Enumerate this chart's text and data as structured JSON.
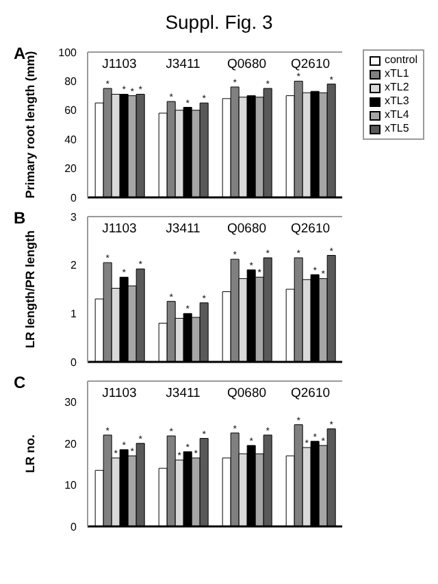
{
  "chart_data": [
    {
      "type": "bar",
      "title": "Suppl. Fig. 3",
      "annotations": [
        "A"
      ],
      "ylabel": "Primary root length (mm)",
      "categories": [
        "J1103",
        "J3411",
        "Q0680",
        "Q2610"
      ],
      "ylim": [
        0,
        100
      ],
      "yticks": [
        0,
        20,
        40,
        60,
        80,
        100
      ],
      "legend": "right",
      "series": [
        {
          "name": "control",
          "color": "#ffffff",
          "values": [
            65,
            58,
            68,
            70
          ]
        },
        {
          "name": "xTL1",
          "color": "#808080",
          "values": [
            75,
            66,
            76,
            80
          ],
          "value_labels": [
            "*",
            "*",
            "*",
            "*"
          ]
        },
        {
          "name": "xTL2",
          "color": "#d9d9d9",
          "values": [
            71,
            60,
            69,
            72
          ]
        },
        {
          "name": "xTL3",
          "color": "#000000",
          "values": [
            71,
            62,
            70,
            73
          ],
          "value_labels": [
            "*",
            "*",
            null,
            null
          ]
        },
        {
          "name": "xTL4",
          "color": "#a6a6a6",
          "values": [
            70,
            60,
            69,
            72
          ],
          "value_labels": [
            "*",
            null,
            null,
            null
          ]
        },
        {
          "name": "xTL5",
          "color": "#595959",
          "values": [
            71,
            65,
            75,
            78
          ],
          "value_labels": [
            "*",
            "*",
            "*",
            "*"
          ]
        }
      ]
    },
    {
      "type": "bar",
      "annotations": [
        "B"
      ],
      "ylabel": "LR length/PR length",
      "categories": [
        "J1103",
        "J3411",
        "Q0680",
        "Q2610"
      ],
      "ylim": [
        0,
        3
      ],
      "yticks": [
        0,
        1,
        2,
        3
      ],
      "series": [
        {
          "color": "#ffffff",
          "values": [
            1.3,
            0.8,
            1.45,
            1.5
          ]
        },
        {
          "color": "#808080",
          "values": [
            2.05,
            1.25,
            2.12,
            2.15
          ],
          "value_labels": [
            "*",
            "*",
            "*",
            "*"
          ]
        },
        {
          "color": "#d9d9d9",
          "values": [
            1.52,
            0.9,
            1.72,
            1.7
          ]
        },
        {
          "color": "#000000",
          "values": [
            1.75,
            1.0,
            1.9,
            1.8
          ],
          "value_labels": [
            "*",
            "*",
            "*",
            "*"
          ]
        },
        {
          "color": "#a6a6a6",
          "values": [
            1.57,
            0.92,
            1.75,
            1.72
          ],
          "value_labels": [
            null,
            null,
            "*",
            "*"
          ]
        },
        {
          "color": "#595959",
          "values": [
            1.92,
            1.22,
            2.15,
            2.2
          ],
          "value_labels": [
            "*",
            "*",
            "*",
            "*"
          ]
        }
      ]
    },
    {
      "type": "bar",
      "annotations": [
        "C"
      ],
      "ylabel": "LR no.",
      "categories": [
        "J1103",
        "J3411",
        "Q0680",
        "Q2610"
      ],
      "ylim": [
        0,
        35
      ],
      "yticks": [
        0,
        10,
        20,
        30
      ],
      "series": [
        {
          "color": "#ffffff",
          "values": [
            13.5,
            14,
            16.5,
            17
          ]
        },
        {
          "color": "#808080",
          "values": [
            22,
            21.8,
            22.5,
            24.5
          ],
          "value_labels": [
            "*",
            "*",
            "*",
            "*"
          ]
        },
        {
          "color": "#d9d9d9",
          "values": [
            16.5,
            16,
            17.5,
            19
          ],
          "value_labels": [
            "*",
            "*",
            null,
            "*"
          ]
        },
        {
          "color": "#000000",
          "values": [
            18.5,
            18,
            19.5,
            20.5
          ],
          "value_labels": [
            "*",
            "*",
            "*",
            "*"
          ]
        },
        {
          "color": "#a6a6a6",
          "values": [
            17,
            16.5,
            17.5,
            19.5
          ],
          "value_labels": [
            "*",
            "*",
            null,
            "*"
          ]
        },
        {
          "color": "#595959",
          "values": [
            20,
            21.2,
            22,
            23.5
          ],
          "value_labels": [
            "*",
            "*",
            "*",
            "*"
          ]
        }
      ]
    }
  ]
}
